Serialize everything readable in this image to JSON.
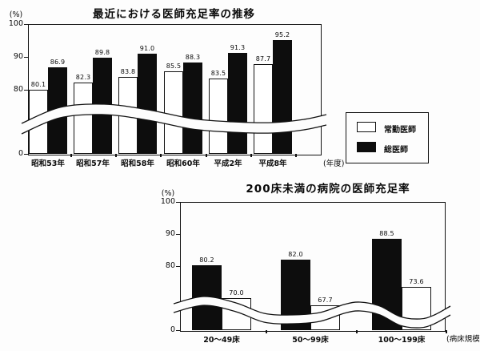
{
  "chart_data": [
    {
      "type": "bar",
      "title": "最近における医師充足率の推移",
      "ylabel_unit": "(%)",
      "xlabel_unit": "(年度)",
      "ylim": [
        0,
        100
      ],
      "yticks": [
        100,
        90,
        80,
        0
      ],
      "axis_break": true,
      "grid": false,
      "categories": [
        "昭和53年",
        "昭和57年",
        "昭和58年",
        "昭和60年",
        "平成2年",
        "平成8年"
      ],
      "series": [
        {
          "name": "常勤医師",
          "fill": "white",
          "values": [
            80.1,
            82.3,
            83.8,
            85.5,
            83.5,
            87.7
          ]
        },
        {
          "name": "総医師",
          "fill": "black",
          "values": [
            86.9,
            89.8,
            91.0,
            88.3,
            91.3,
            95.2
          ]
        }
      ],
      "legend_position": "right-of-plot"
    },
    {
      "type": "bar",
      "title": "200床未満の病院の医師充足率",
      "ylabel_unit": "(%)",
      "xlabel_unit": "(病床規模)",
      "ylim": [
        0,
        100
      ],
      "yticks": [
        100,
        90,
        80,
        0
      ],
      "axis_break": true,
      "grid": false,
      "categories": [
        "20〜49床",
        "50〜99床",
        "100〜199床"
      ],
      "series": [
        {
          "name": "総医師",
          "fill": "black",
          "values": [
            80.2,
            82.0,
            88.5
          ]
        },
        {
          "name": "常勤医師",
          "fill": "white",
          "values": [
            70.0,
            67.7,
            73.6
          ]
        }
      ],
      "legend_position": "none"
    }
  ],
  "legend": {
    "items": [
      {
        "label": "常勤医師",
        "swatch": "white"
      },
      {
        "label": "総医師",
        "swatch": "black"
      }
    ]
  }
}
